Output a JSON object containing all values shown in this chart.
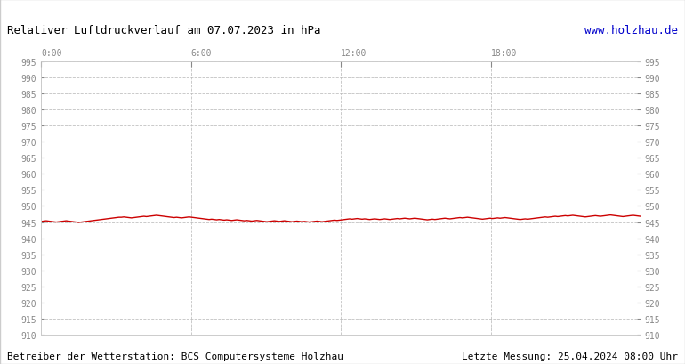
{
  "title": "Relativer Luftdruckverlauf am 07.07.2023 in hPa",
  "url_text": "www.holzhau.de",
  "footer_left": "Betreiber der Wetterstation: BCS Computersysteme Holzhau",
  "footer_right": "Letzte Messung: 25.04.2024 08:00 Uhr",
  "x_tick_labels": [
    "0:00",
    "6:00",
    "12:00",
    "18:00"
  ],
  "x_tick_positions": [
    0,
    360,
    720,
    1080
  ],
  "x_max": 1440,
  "y_min": 910,
  "y_max": 995,
  "y_tick_step": 5,
  "line_color": "#cc0000",
  "grid_color": "#bbbbbb",
  "bg_color": "#ffffff",
  "plot_bg_color": "#ffffff",
  "title_color": "#000000",
  "url_color": "#0000cc",
  "footer_color": "#000000",
  "pressure_data": [
    945.2,
    945.3,
    945.4,
    945.3,
    945.2,
    945.1,
    945.0,
    945.1,
    945.2,
    945.3,
    945.4,
    945.3,
    945.2,
    945.1,
    945.0,
    944.9,
    945.0,
    945.1,
    945.2,
    945.3,
    945.4,
    945.5,
    945.6,
    945.7,
    945.8,
    945.9,
    946.0,
    946.1,
    946.2,
    946.3,
    946.4,
    946.5,
    946.5,
    946.6,
    946.5,
    946.4,
    946.3,
    946.4,
    946.5,
    946.6,
    946.7,
    946.8,
    946.7,
    946.8,
    946.9,
    947.0,
    947.1,
    947.0,
    946.9,
    946.8,
    946.7,
    946.6,
    946.5,
    946.4,
    946.5,
    946.4,
    946.3,
    946.4,
    946.5,
    946.6,
    946.5,
    946.4,
    946.3,
    946.2,
    946.1,
    946.0,
    945.9,
    945.8,
    945.9,
    945.8,
    945.7,
    945.8,
    945.7,
    945.6,
    945.7,
    945.6,
    945.5,
    945.6,
    945.7,
    945.6,
    945.5,
    945.4,
    945.5,
    945.4,
    945.3,
    945.4,
    945.5,
    945.4,
    945.3,
    945.2,
    945.1,
    945.2,
    945.3,
    945.4,
    945.3,
    945.2,
    945.3,
    945.4,
    945.3,
    945.2,
    945.1,
    945.2,
    945.3,
    945.2,
    945.1,
    945.2,
    945.1,
    945.0,
    945.1,
    945.2,
    945.3,
    945.2,
    945.1,
    945.2,
    945.3,
    945.4,
    945.5,
    945.6,
    945.5,
    945.6,
    945.7,
    945.8,
    945.9,
    946.0,
    945.9,
    946.0,
    946.1,
    946.0,
    945.9,
    946.0,
    945.9,
    945.8,
    945.9,
    946.0,
    945.9,
    945.8,
    945.9,
    946.0,
    945.9,
    945.8,
    945.9,
    946.0,
    946.1,
    946.0,
    946.1,
    946.2,
    946.1,
    946.0,
    946.1,
    946.2,
    946.1,
    946.0,
    945.9,
    945.8,
    945.7,
    945.8,
    945.9,
    945.8,
    945.9,
    946.0,
    946.1,
    946.2,
    946.1,
    946.0,
    946.1,
    946.2,
    946.3,
    946.4,
    946.3,
    946.4,
    946.5,
    946.4,
    946.3,
    946.2,
    946.1,
    946.0,
    945.9,
    946.0,
    946.1,
    946.2,
    946.1,
    946.2,
    946.3,
    946.2,
    946.3,
    946.4,
    946.3,
    946.2,
    946.1,
    946.0,
    945.9,
    945.8,
    945.9,
    946.0,
    945.9,
    946.0,
    946.1,
    946.2,
    946.3,
    946.4,
    946.5,
    946.6,
    946.5,
    946.6,
    946.7,
    946.8,
    946.7,
    946.8,
    946.9,
    947.0,
    946.9,
    947.0,
    947.1,
    947.0,
    946.9,
    946.8,
    946.7,
    946.6,
    946.7,
    946.8,
    946.9,
    947.0,
    946.9,
    946.8,
    946.9,
    947.0,
    947.1,
    947.2,
    947.1,
    947.0,
    946.9,
    946.8,
    946.7,
    946.8,
    946.9,
    947.0,
    947.1,
    947.0,
    946.9,
    946.8
  ]
}
